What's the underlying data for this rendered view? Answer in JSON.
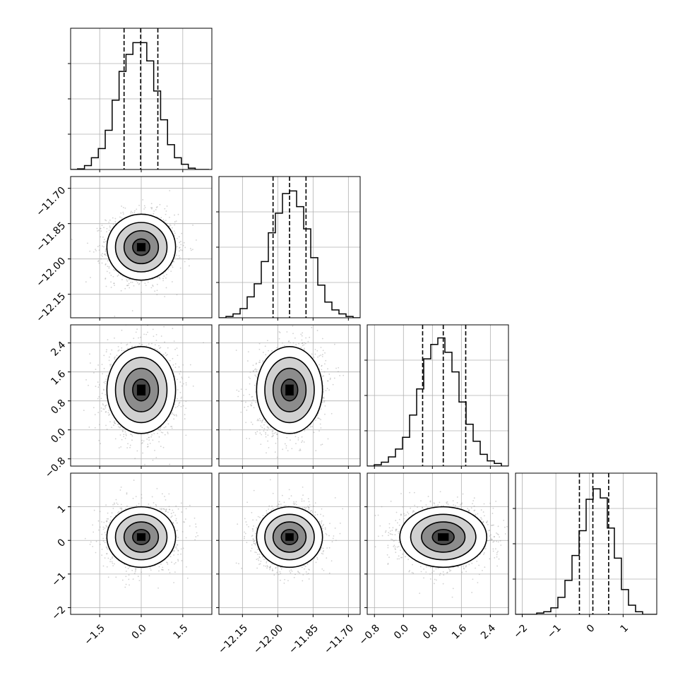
{
  "chart_data": {
    "type": "corner",
    "title": "",
    "params": [
      {
        "xlim": [
          -2.55,
          2.55
        ],
        "ylim_hist": [
          0,
          1.08
        ],
        "ticks": [
          -1.5,
          0.0,
          1.5
        ],
        "tick_labels": [
          "−1.5",
          "0.0",
          "1.5"
        ],
        "hist_bins": [
          -2.55,
          -2.3,
          -2.05,
          -1.8,
          -1.55,
          -1.3,
          -1.05,
          -0.8,
          -0.55,
          -0.3,
          -0.05,
          0.2,
          0.45,
          0.7,
          0.95,
          1.2,
          1.45,
          1.7,
          1.95,
          2.2,
          2.45
        ],
        "hist_values": [
          0.0,
          0.005,
          0.03,
          0.09,
          0.16,
          0.3,
          0.53,
          0.75,
          0.88,
          0.97,
          0.97,
          0.83,
          0.6,
          0.38,
          0.19,
          0.09,
          0.04,
          0.01,
          0.0,
          0.0
        ],
        "quantiles": [
          -0.62,
          -0.02,
          0.6
        ],
        "center": 0.0,
        "sigma": 0.62
      },
      {
        "xlim": [
          -12.25,
          -11.65
        ],
        "ylim_hist": [
          0,
          1.08
        ],
        "ticks": [
          -12.15,
          -12.0,
          -11.85,
          -11.7
        ],
        "tick_labels": [
          "−12.15",
          "−12.00",
          "−11.85",
          "−11.70"
        ],
        "hist_bins": [
          -12.25,
          -12.22,
          -12.19,
          -12.16,
          -12.13,
          -12.1,
          -12.07,
          -12.04,
          -12.01,
          -11.98,
          -11.95,
          -11.92,
          -11.89,
          -11.86,
          -11.83,
          -11.8,
          -11.77,
          -11.74,
          -11.71,
          -11.68,
          -11.65
        ],
        "hist_values": [
          0.0,
          0.01,
          0.03,
          0.07,
          0.16,
          0.26,
          0.43,
          0.65,
          0.8,
          0.95,
          0.97,
          0.85,
          0.68,
          0.46,
          0.25,
          0.12,
          0.06,
          0.03,
          0.01,
          0.0
        ],
        "quantiles": [
          -12.02,
          -11.95,
          -11.88
        ],
        "center": -11.95,
        "sigma": 0.07
      },
      {
        "xlim": [
          -1.0,
          2.9
        ],
        "ylim_hist": [
          0,
          1.08
        ],
        "ticks": [
          -0.8,
          0.0,
          0.8,
          1.6,
          2.4
        ],
        "tick_labels": [
          "−0.8",
          "0.0",
          "0.8",
          "1.6",
          "2.4"
        ],
        "hist_bins": [
          -1.0,
          -0.805,
          -0.61,
          -0.415,
          -0.22,
          -0.025,
          0.17,
          0.365,
          0.56,
          0.755,
          0.95,
          1.145,
          1.34,
          1.535,
          1.73,
          1.925,
          2.12,
          2.315,
          2.51,
          2.705,
          2.9
        ],
        "hist_values": [
          0.0,
          0.01,
          0.03,
          0.07,
          0.13,
          0.22,
          0.39,
          0.59,
          0.82,
          0.93,
          0.98,
          0.87,
          0.72,
          0.49,
          0.32,
          0.19,
          0.09,
          0.04,
          0.02,
          0.0
        ],
        "quantiles": [
          0.53,
          1.1,
          1.72
        ],
        "center": 1.1,
        "sigma": 0.6
      },
      {
        "xlim": [
          -2.2,
          2.0
        ],
        "ylim_hist": [
          0,
          1.08
        ],
        "ticks": [
          -2,
          -1,
          0,
          1
        ],
        "tick_labels": [
          "−2",
          "−1",
          "0",
          "1"
        ],
        "hist_bins": [
          -2.2,
          -1.99,
          -1.78,
          -1.57,
          -1.36,
          -1.15,
          -0.94,
          -0.73,
          -0.52,
          -0.31,
          -0.1,
          0.11,
          0.32,
          0.53,
          0.74,
          0.95,
          1.16,
          1.37,
          1.58,
          1.79,
          2.0
        ],
        "hist_values": [
          0.0,
          0.0,
          0.0,
          0.01,
          0.02,
          0.05,
          0.13,
          0.26,
          0.45,
          0.64,
          0.88,
          0.96,
          0.89,
          0.66,
          0.43,
          0.19,
          0.07,
          0.02,
          0.0,
          0.0
        ],
        "quantiles": [
          -0.3,
          0.1,
          0.57
        ],
        "center": 0.1,
        "sigma": 0.45
      }
    ],
    "contour_levels": [
      0.118,
      0.393,
      0.675,
      0.865
    ],
    "pair_correlation": {
      "1-0": 0.0,
      "2-0": 0.0,
      "2-1": 0.1,
      "3-0": 0.05,
      "3-1": 0.05,
      "3-2": 0.0
    },
    "grid": true
  }
}
